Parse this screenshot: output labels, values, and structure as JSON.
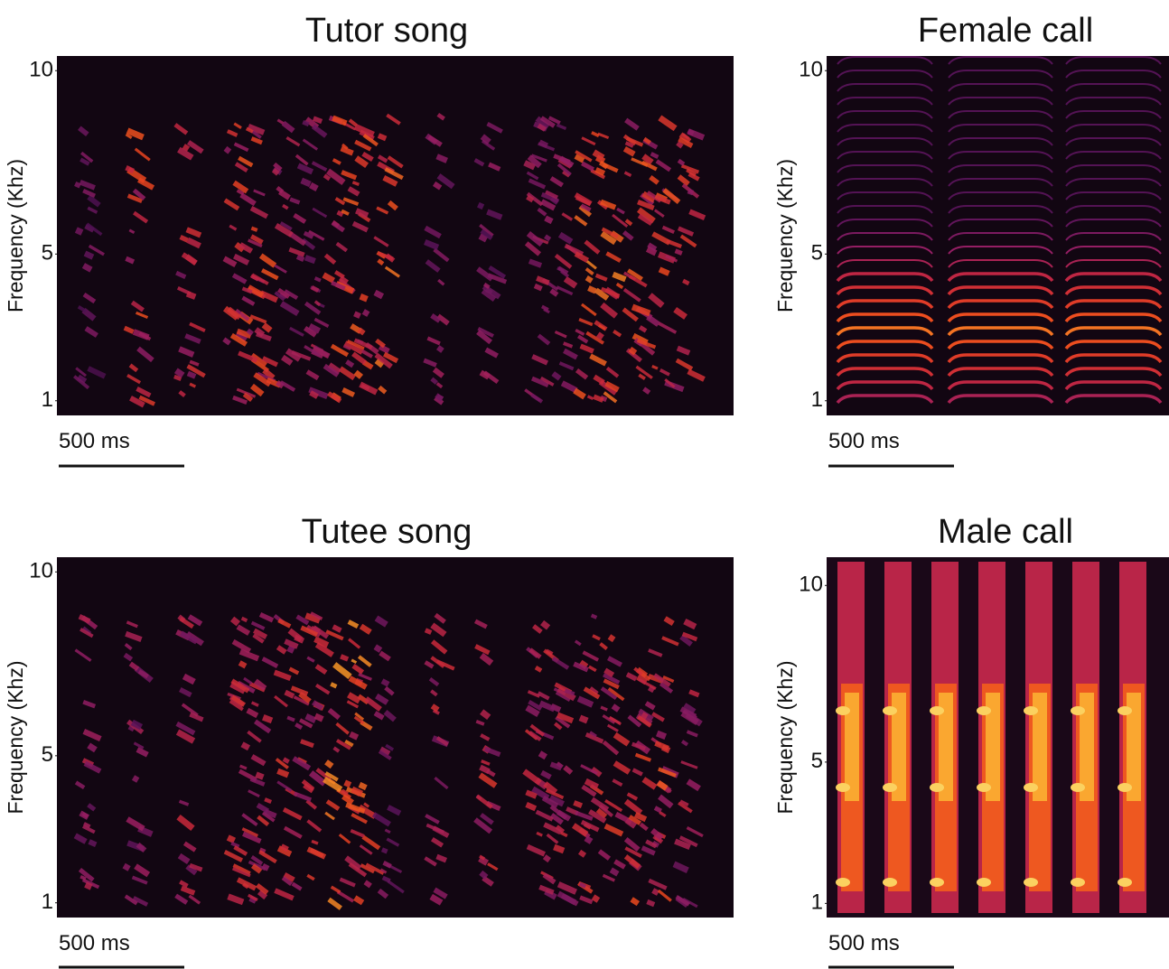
{
  "panels": [
    {
      "title": "Tutor song",
      "y_label": "Frequency (Khz)",
      "yticks": [
        10,
        5,
        1
      ],
      "ylim": [
        0.6,
        10.4
      ],
      "scale_bar": "500 ms"
    },
    {
      "title": "Female call",
      "y_label": "Frequency (Khz)",
      "yticks": [
        10,
        5,
        1
      ],
      "ylim": [
        0.6,
        10.4
      ],
      "scale_bar": "500 ms"
    },
    {
      "title": "Tutee song",
      "y_label": "Frequency (Khz)",
      "yticks": [
        10,
        5,
        1
      ],
      "ylim": [
        0.6,
        10.4
      ],
      "scale_bar": "500 ms"
    },
    {
      "title": "Male call",
      "y_label": "Frequency (Khz)",
      "yticks": [
        10,
        5,
        1
      ],
      "ylim": [
        0.6,
        10.8
      ],
      "scale_bar": "500 ms"
    }
  ]
}
